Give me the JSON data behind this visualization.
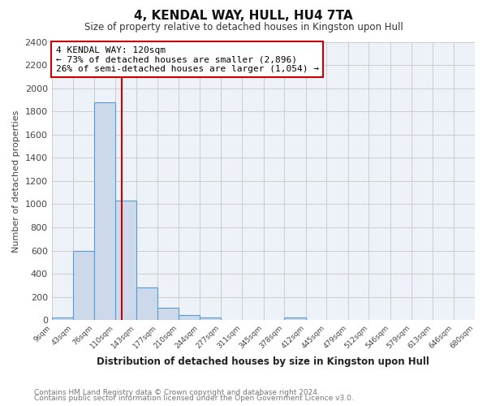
{
  "title": "4, KENDAL WAY, HULL, HU4 7TA",
  "subtitle": "Size of property relative to detached houses in Kingston upon Hull",
  "xlabel": "Distribution of detached houses by size in Kingston upon Hull",
  "ylabel": "Number of detached properties",
  "bin_edges": [
    9,
    43,
    76,
    110,
    143,
    177,
    210,
    244,
    277,
    311,
    345,
    378,
    412,
    445,
    479,
    512,
    546,
    579,
    613,
    646,
    680
  ],
  "counts": [
    20,
    600,
    1880,
    1030,
    280,
    110,
    45,
    20,
    0,
    0,
    0,
    20,
    0,
    0,
    0,
    0,
    0,
    0,
    0,
    0
  ],
  "bar_facecolor": "#ccd9ea",
  "bar_edgecolor": "#5b9bd5",
  "vline_color": "#cc0000",
  "vline_x": 120,
  "annotation_title": "4 KENDAL WAY: 120sqm",
  "annotation_line1": "← 73% of detached houses are smaller (2,896)",
  "annotation_line2": "26% of semi-detached houses are larger (1,054) →",
  "annotation_box_facecolor": "#ffffff",
  "annotation_box_edgecolor": "#cc0000",
  "ylim": [
    0,
    2400
  ],
  "yticks": [
    0,
    200,
    400,
    600,
    800,
    1000,
    1200,
    1400,
    1600,
    1800,
    2000,
    2200,
    2400
  ],
  "grid_color": "#cccccc",
  "plot_bg_color": "#edf2f9",
  "fig_bg_color": "#ffffff",
  "footer1": "Contains HM Land Registry data © Crown copyright and database right 2024.",
  "footer2": "Contains public sector information licensed under the Open Government Licence v3.0."
}
